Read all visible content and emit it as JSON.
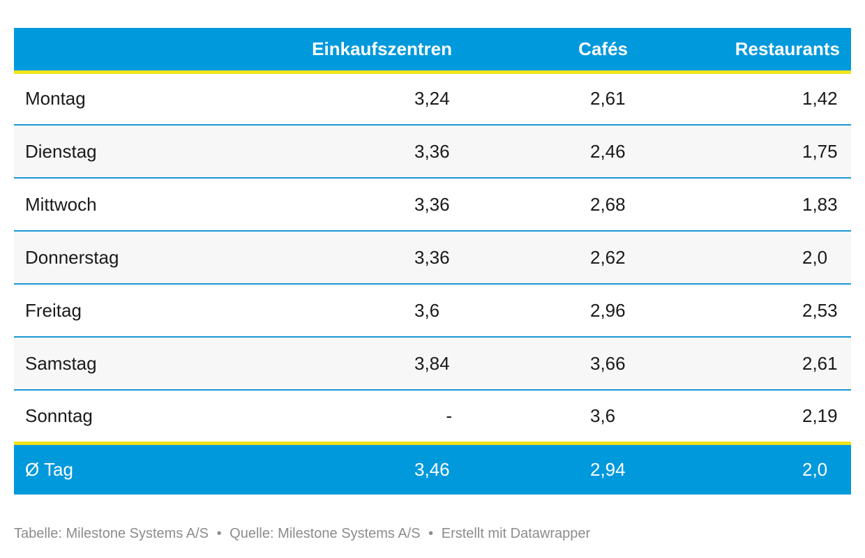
{
  "chart_data": {
    "type": "table",
    "columns": [
      "",
      "Einkaufszentren",
      "Cafés",
      "Restaurants"
    ],
    "rows": [
      {
        "label": "Montag",
        "values": [
          "3,24",
          "2,61",
          "1,42"
        ]
      },
      {
        "label": "Dienstag",
        "values": [
          "3,36",
          "2,46",
          "1,75"
        ]
      },
      {
        "label": "Mittwoch",
        "values": [
          "3,36",
          "2,68",
          "1,83"
        ]
      },
      {
        "label": "Donnerstag",
        "values": [
          "3,36",
          "2,62",
          "2,0"
        ]
      },
      {
        "label": "Freitag",
        "values": [
          "3,6",
          "2,96",
          "2,53"
        ]
      },
      {
        "label": "Samstag",
        "values": [
          "3,84",
          "3,66",
          "2,61"
        ]
      },
      {
        "label": "Sonntag",
        "values": [
          "-",
          "3,6",
          "2,19"
        ]
      }
    ],
    "summary_row": {
      "label": "Ø Tag",
      "values": [
        "3,46",
        "2,94",
        "2,0"
      ]
    },
    "colors": {
      "header": "#0099dc",
      "accent_line": "#f0e31a",
      "row_divider": "#1a97d6",
      "alt_row": "#f7f7f7"
    }
  },
  "footer": {
    "table_credit": "Tabelle: Milestone Systems A/S",
    "source": "Quelle: Milestone Systems A/S",
    "made_with": "Erstellt mit Datawrapper",
    "separator": "•"
  }
}
